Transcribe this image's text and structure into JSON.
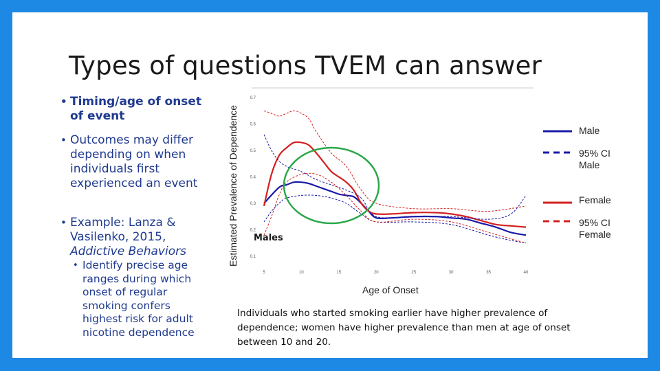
{
  "slide": {
    "title": "Types of questions TVEM can answer",
    "bullets": [
      {
        "text": "Timing/age of onset of event"
      },
      {
        "text": "Outcomes may differ depending on when individuals first experienced an event"
      },
      {
        "text_prefix": "Example: Lanza & Vasilenko, 2015, ",
        "text_italic": "Addictive Behaviors"
      }
    ],
    "sub_bullet": "Identify precise age ranges during which onset of regular smoking confers highest risk for adult nicotine dependence",
    "caption": "Individuals who started smoking earlier have higher prevalence of dependence; women have higher prevalence than men at age of onset between 10 and 20.",
    "males_label": "Males",
    "bullet_symbol": "•"
  },
  "colors": {
    "background_border": "#1e88e5",
    "text_blue": "#1f3a8f",
    "male": "#1a1aa8",
    "female": "#d42020",
    "circle": "#2aa84a"
  },
  "chart_data": {
    "type": "line",
    "xlabel": "Age of Onset",
    "ylabel": "Estimated Prevalence of Dependence",
    "xlim": [
      4,
      41
    ],
    "ylim": [
      0.08,
      0.72
    ],
    "x_ticks": [
      5,
      10,
      15,
      20,
      25,
      30,
      35,
      40
    ],
    "y_ticks": [
      0.1,
      0.2,
      0.3,
      0.4,
      0.5,
      0.6,
      0.7
    ],
    "legend": [
      {
        "label": "Male",
        "color": "#1a1aa8",
        "style": "solid"
      },
      {
        "label": "95% CI Male",
        "color": "#1a1aa8",
        "style": "dashed"
      },
      {
        "label": "Female",
        "color": "#d42020",
        "style": "solid"
      },
      {
        "label": "95% CI Female",
        "color": "#d42020",
        "style": "dashed"
      }
    ],
    "series": [
      {
        "name": "Male",
        "x": [
          5,
          7,
          8,
          9,
          10,
          11,
          12,
          13,
          14,
          15,
          16,
          17,
          18,
          19,
          20,
          22,
          25,
          28,
          30,
          32,
          34,
          36,
          38,
          40
        ],
        "values": [
          0.3,
          0.36,
          0.37,
          0.38,
          0.38,
          0.375,
          0.365,
          0.355,
          0.345,
          0.335,
          0.33,
          0.325,
          0.3,
          0.27,
          0.245,
          0.245,
          0.25,
          0.25,
          0.245,
          0.24,
          0.225,
          0.21,
          0.19,
          0.18
        ]
      },
      {
        "name": "Female",
        "x": [
          5,
          6,
          7,
          8,
          9,
          10,
          11,
          12,
          13,
          14,
          15,
          16,
          17,
          18,
          19,
          20,
          22,
          25,
          28,
          30,
          32,
          34,
          36,
          38,
          40
        ],
        "values": [
          0.29,
          0.41,
          0.48,
          0.51,
          0.53,
          0.53,
          0.52,
          0.49,
          0.455,
          0.42,
          0.4,
          0.38,
          0.35,
          0.3,
          0.27,
          0.26,
          0.26,
          0.265,
          0.265,
          0.26,
          0.25,
          0.235,
          0.22,
          0.215,
          0.21
        ]
      },
      {
        "name": "95% CI Male upper",
        "x": [
          5,
          6,
          7,
          8,
          9,
          10,
          12,
          14,
          16,
          18,
          20,
          25,
          30,
          35,
          38,
          40
        ],
        "values": [
          0.56,
          0.5,
          0.46,
          0.44,
          0.43,
          0.42,
          0.39,
          0.37,
          0.35,
          0.32,
          0.25,
          0.25,
          0.25,
          0.24,
          0.26,
          0.33
        ]
      },
      {
        "name": "95% CI Male lower",
        "x": [
          5,
          6,
          7,
          8,
          10,
          12,
          14,
          16,
          18,
          20,
          25,
          30,
          35,
          38,
          40
        ],
        "values": [
          0.23,
          0.27,
          0.3,
          0.32,
          0.33,
          0.33,
          0.32,
          0.3,
          0.26,
          0.23,
          0.23,
          0.22,
          0.18,
          0.16,
          0.15
        ]
      },
      {
        "name": "95% CI Female upper",
        "x": [
          5,
          6,
          7,
          8,
          9,
          10,
          11,
          12,
          14,
          16,
          18,
          20,
          25,
          30,
          35,
          40
        ],
        "values": [
          0.65,
          0.64,
          0.63,
          0.64,
          0.65,
          0.64,
          0.62,
          0.57,
          0.49,
          0.44,
          0.35,
          0.3,
          0.28,
          0.28,
          0.27,
          0.29
        ]
      },
      {
        "name": "95% CI Female lower",
        "x": [
          5,
          6,
          7,
          8,
          10,
          12,
          14,
          16,
          18,
          20,
          25,
          30,
          35,
          40
        ],
        "values": [
          0.18,
          0.25,
          0.33,
          0.38,
          0.41,
          0.41,
          0.38,
          0.33,
          0.27,
          0.23,
          0.24,
          0.23,
          0.19,
          0.15
        ]
      }
    ]
  }
}
